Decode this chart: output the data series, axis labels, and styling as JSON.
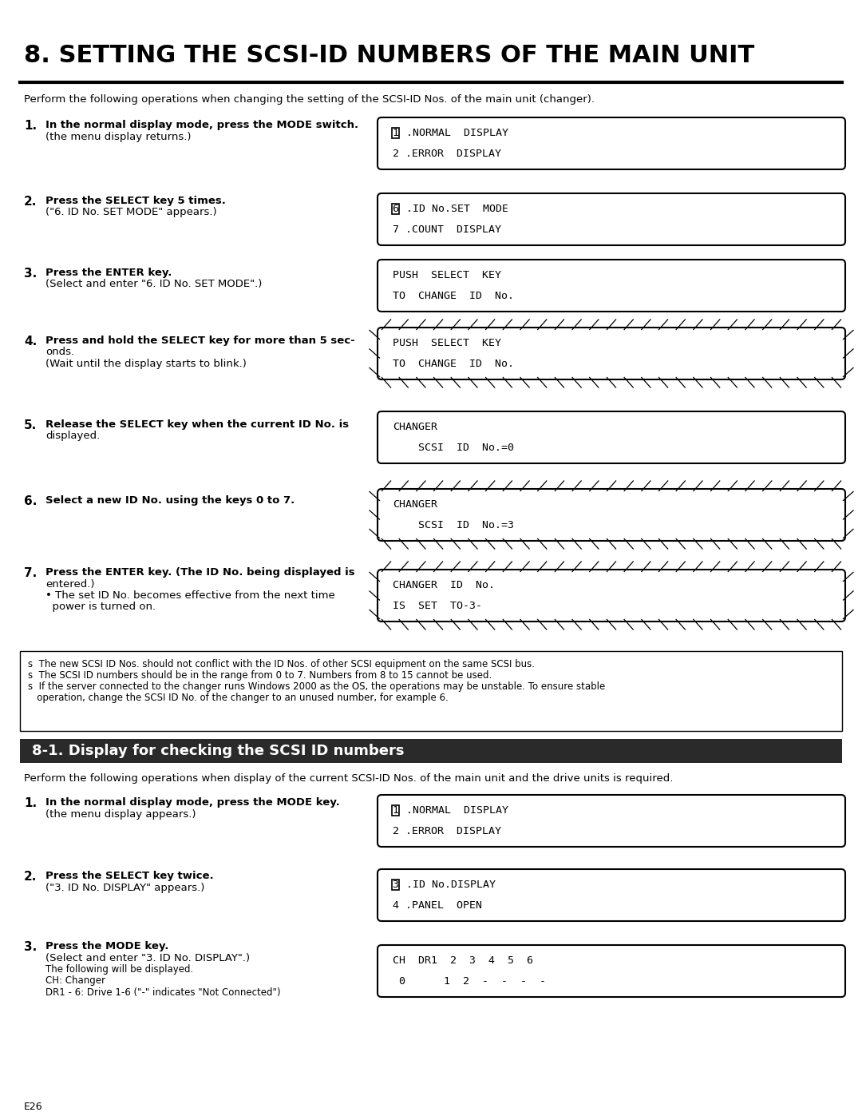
{
  "title": "8. SETTING THE SCSI-ID NUMBERS OF THE MAIN UNIT",
  "bg_color": "#ffffff",
  "section2_title": "8-1. Display for checking the SCSI ID numbers",
  "intro_text": "Perform the following operations when changing the setting of the SCSI-ID Nos. of the main unit (changer).",
  "intro2_text": "Perform the following operations when display of the current SCSI-ID Nos. of the main unit and the drive units is required.",
  "steps": [
    {
      "num": "1.",
      "lines": [
        "In the normal display mode, press the MODE switch.",
        "(the menu display returns.)"
      ],
      "line_styles": [
        "bold",
        "normal"
      ],
      "d1": "1 .NORMAL  DISPLAY",
      "d2": "2 .ERROR  DISPLAY",
      "box_char": "1",
      "blink": false
    },
    {
      "num": "2.",
      "lines": [
        "Press the SELECT key 5 times.",
        "(\"6. ID No. SET MODE\" appears.)"
      ],
      "line_styles": [
        "bold",
        "normal"
      ],
      "d1": "6 .ID No.SET  MODE",
      "d2": "7 .COUNT  DISPLAY",
      "box_char": "6",
      "blink": false
    },
    {
      "num": "3.",
      "lines": [
        "Press the ENTER key.",
        "(Select and enter \"6. ID No. SET MODE\".)"
      ],
      "line_styles": [
        "bold",
        "normal"
      ],
      "d1": "PUSH  SELECT  KEY",
      "d2": "TO  CHANGE  ID  No.",
      "box_char": null,
      "blink": false
    },
    {
      "num": "4.",
      "lines": [
        "Press and hold the SELECT key for more than 5 sec-",
        "onds.",
        "(Wait until the display starts to blink.)"
      ],
      "line_styles": [
        "bold",
        "normal",
        "normal"
      ],
      "d1": "PUSH  SELECT  KEY",
      "d2": "TO  CHANGE  ID  No.",
      "box_char": null,
      "blink": true
    },
    {
      "num": "5.",
      "lines": [
        "Release the SELECT key when the current ID No. is",
        "displayed."
      ],
      "line_styles": [
        "bold",
        "normal"
      ],
      "d1": "CHANGER",
      "d2": "    SCSI  ID  No.=0",
      "box_char": null,
      "blink": false
    },
    {
      "num": "6.",
      "lines": [
        "Select a new ID No. using the keys 0 to 7."
      ],
      "line_styles": [
        "bold"
      ],
      "d1": "CHANGER",
      "d2": "    SCSI  ID  No.=3",
      "box_char": null,
      "blink": true
    },
    {
      "num": "7.",
      "lines": [
        "Press the ENTER key. (The ID No. being displayed is",
        "entered.)",
        "• The set ID No. becomes effective from the next time",
        "  power is turned on."
      ],
      "line_styles": [
        "bold",
        "normal",
        "normal",
        "normal"
      ],
      "d1": "CHANGER  ID  No.",
      "d2": "IS  SET  TO-3-",
      "box_char": null,
      "blink": true
    }
  ],
  "notes": [
    "s  The new SCSI ID Nos. should not conflict with the ID Nos. of other SCSI equipment on the same SCSI bus.",
    "s  The SCSI ID numbers should be in the range from 0 to 7. Numbers from 8 to 15 cannot be used.",
    "s  If the server connected to the changer runs Windows 2000 as the OS, the operations may be unstable. To ensure stable",
    "   operation, change the SCSI ID No. of the changer to an unused number, for example 6."
  ],
  "steps2": [
    {
      "num": "1.",
      "lines": [
        "In the normal display mode, press the MODE key.",
        "(the menu display appears.)"
      ],
      "line_styles": [
        "bold",
        "normal"
      ],
      "d1": "1 .NORMAL  DISPLAY",
      "d2": "2 .ERROR  DISPLAY",
      "box_char": "1",
      "blink": false
    },
    {
      "num": "2.",
      "lines": [
        "Press the SELECT key twice.",
        "(\"3. ID No. DISPLAY\" appears.)"
      ],
      "line_styles": [
        "bold",
        "normal"
      ],
      "d1": "3 .ID No.DISPLAY",
      "d2": "4 .PANEL  OPEN",
      "box_char": "3",
      "blink": false
    },
    {
      "num": "3.",
      "lines": [
        "Press the MODE key.",
        "(Select and enter \"3. ID No. DISPLAY\".)",
        "The following will be displayed.",
        "CH: Changer",
        "DR1 - 6: Drive 1-6 (\"-\" indicates \"Not Connected\")"
      ],
      "line_styles": [
        "bold",
        "normal",
        "small",
        "small",
        "small"
      ],
      "d1": "CH  DR1  2  3  4  5  6",
      "d2": " 0      1  2  -  -  -  -",
      "box_char": null,
      "blink": false
    }
  ],
  "footer": "E26"
}
